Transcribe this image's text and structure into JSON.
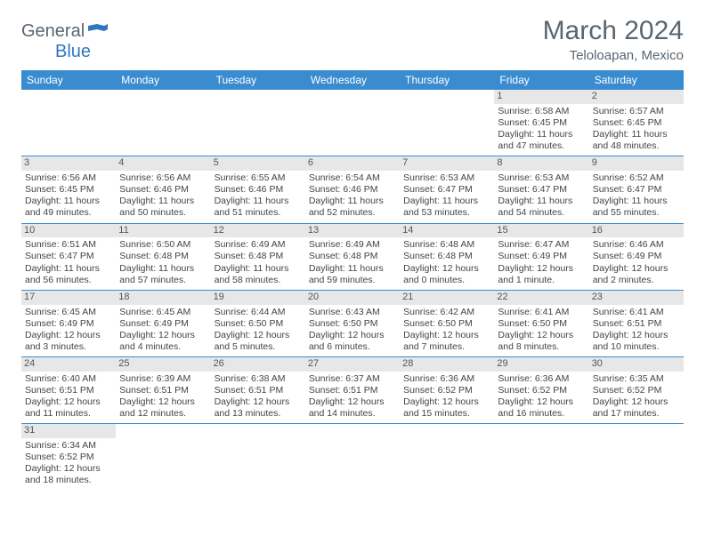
{
  "logo": {
    "text1": "General",
    "text2": "Blue",
    "flag_color": "#2f78bf"
  },
  "title": "March 2024",
  "subtitle": "Teloloapan, Mexico",
  "colors": {
    "header_bg": "#3b8bd0",
    "header_text": "#ffffff",
    "daynum_bg": "#e7e7e7",
    "cell_border": "#3b8bd0",
    "body_text": "#444444",
    "title_text": "#5a6670"
  },
  "weekdays": [
    "Sunday",
    "Monday",
    "Tuesday",
    "Wednesday",
    "Thursday",
    "Friday",
    "Saturday"
  ],
  "weeks": [
    [
      null,
      null,
      null,
      null,
      null,
      {
        "day": "1",
        "sunrise": "Sunrise: 6:58 AM",
        "sunset": "Sunset: 6:45 PM",
        "daylight": "Daylight: 11 hours and 47 minutes."
      },
      {
        "day": "2",
        "sunrise": "Sunrise: 6:57 AM",
        "sunset": "Sunset: 6:45 PM",
        "daylight": "Daylight: 11 hours and 48 minutes."
      }
    ],
    [
      {
        "day": "3",
        "sunrise": "Sunrise: 6:56 AM",
        "sunset": "Sunset: 6:45 PM",
        "daylight": "Daylight: 11 hours and 49 minutes."
      },
      {
        "day": "4",
        "sunrise": "Sunrise: 6:56 AM",
        "sunset": "Sunset: 6:46 PM",
        "daylight": "Daylight: 11 hours and 50 minutes."
      },
      {
        "day": "5",
        "sunrise": "Sunrise: 6:55 AM",
        "sunset": "Sunset: 6:46 PM",
        "daylight": "Daylight: 11 hours and 51 minutes."
      },
      {
        "day": "6",
        "sunrise": "Sunrise: 6:54 AM",
        "sunset": "Sunset: 6:46 PM",
        "daylight": "Daylight: 11 hours and 52 minutes."
      },
      {
        "day": "7",
        "sunrise": "Sunrise: 6:53 AM",
        "sunset": "Sunset: 6:47 PM",
        "daylight": "Daylight: 11 hours and 53 minutes."
      },
      {
        "day": "8",
        "sunrise": "Sunrise: 6:53 AM",
        "sunset": "Sunset: 6:47 PM",
        "daylight": "Daylight: 11 hours and 54 minutes."
      },
      {
        "day": "9",
        "sunrise": "Sunrise: 6:52 AM",
        "sunset": "Sunset: 6:47 PM",
        "daylight": "Daylight: 11 hours and 55 minutes."
      }
    ],
    [
      {
        "day": "10",
        "sunrise": "Sunrise: 6:51 AM",
        "sunset": "Sunset: 6:47 PM",
        "daylight": "Daylight: 11 hours and 56 minutes."
      },
      {
        "day": "11",
        "sunrise": "Sunrise: 6:50 AM",
        "sunset": "Sunset: 6:48 PM",
        "daylight": "Daylight: 11 hours and 57 minutes."
      },
      {
        "day": "12",
        "sunrise": "Sunrise: 6:49 AM",
        "sunset": "Sunset: 6:48 PM",
        "daylight": "Daylight: 11 hours and 58 minutes."
      },
      {
        "day": "13",
        "sunrise": "Sunrise: 6:49 AM",
        "sunset": "Sunset: 6:48 PM",
        "daylight": "Daylight: 11 hours and 59 minutes."
      },
      {
        "day": "14",
        "sunrise": "Sunrise: 6:48 AM",
        "sunset": "Sunset: 6:48 PM",
        "daylight": "Daylight: 12 hours and 0 minutes."
      },
      {
        "day": "15",
        "sunrise": "Sunrise: 6:47 AM",
        "sunset": "Sunset: 6:49 PM",
        "daylight": "Daylight: 12 hours and 1 minute."
      },
      {
        "day": "16",
        "sunrise": "Sunrise: 6:46 AM",
        "sunset": "Sunset: 6:49 PM",
        "daylight": "Daylight: 12 hours and 2 minutes."
      }
    ],
    [
      {
        "day": "17",
        "sunrise": "Sunrise: 6:45 AM",
        "sunset": "Sunset: 6:49 PM",
        "daylight": "Daylight: 12 hours and 3 minutes."
      },
      {
        "day": "18",
        "sunrise": "Sunrise: 6:45 AM",
        "sunset": "Sunset: 6:49 PM",
        "daylight": "Daylight: 12 hours and 4 minutes."
      },
      {
        "day": "19",
        "sunrise": "Sunrise: 6:44 AM",
        "sunset": "Sunset: 6:50 PM",
        "daylight": "Daylight: 12 hours and 5 minutes."
      },
      {
        "day": "20",
        "sunrise": "Sunrise: 6:43 AM",
        "sunset": "Sunset: 6:50 PM",
        "daylight": "Daylight: 12 hours and 6 minutes."
      },
      {
        "day": "21",
        "sunrise": "Sunrise: 6:42 AM",
        "sunset": "Sunset: 6:50 PM",
        "daylight": "Daylight: 12 hours and 7 minutes."
      },
      {
        "day": "22",
        "sunrise": "Sunrise: 6:41 AM",
        "sunset": "Sunset: 6:50 PM",
        "daylight": "Daylight: 12 hours and 8 minutes."
      },
      {
        "day": "23",
        "sunrise": "Sunrise: 6:41 AM",
        "sunset": "Sunset: 6:51 PM",
        "daylight": "Daylight: 12 hours and 10 minutes."
      }
    ],
    [
      {
        "day": "24",
        "sunrise": "Sunrise: 6:40 AM",
        "sunset": "Sunset: 6:51 PM",
        "daylight": "Daylight: 12 hours and 11 minutes."
      },
      {
        "day": "25",
        "sunrise": "Sunrise: 6:39 AM",
        "sunset": "Sunset: 6:51 PM",
        "daylight": "Daylight: 12 hours and 12 minutes."
      },
      {
        "day": "26",
        "sunrise": "Sunrise: 6:38 AM",
        "sunset": "Sunset: 6:51 PM",
        "daylight": "Daylight: 12 hours and 13 minutes."
      },
      {
        "day": "27",
        "sunrise": "Sunrise: 6:37 AM",
        "sunset": "Sunset: 6:51 PM",
        "daylight": "Daylight: 12 hours and 14 minutes."
      },
      {
        "day": "28",
        "sunrise": "Sunrise: 6:36 AM",
        "sunset": "Sunset: 6:52 PM",
        "daylight": "Daylight: 12 hours and 15 minutes."
      },
      {
        "day": "29",
        "sunrise": "Sunrise: 6:36 AM",
        "sunset": "Sunset: 6:52 PM",
        "daylight": "Daylight: 12 hours and 16 minutes."
      },
      {
        "day": "30",
        "sunrise": "Sunrise: 6:35 AM",
        "sunset": "Sunset: 6:52 PM",
        "daylight": "Daylight: 12 hours and 17 minutes."
      }
    ],
    [
      {
        "day": "31",
        "sunrise": "Sunrise: 6:34 AM",
        "sunset": "Sunset: 6:52 PM",
        "daylight": "Daylight: 12 hours and 18 minutes."
      },
      null,
      null,
      null,
      null,
      null,
      null
    ]
  ]
}
